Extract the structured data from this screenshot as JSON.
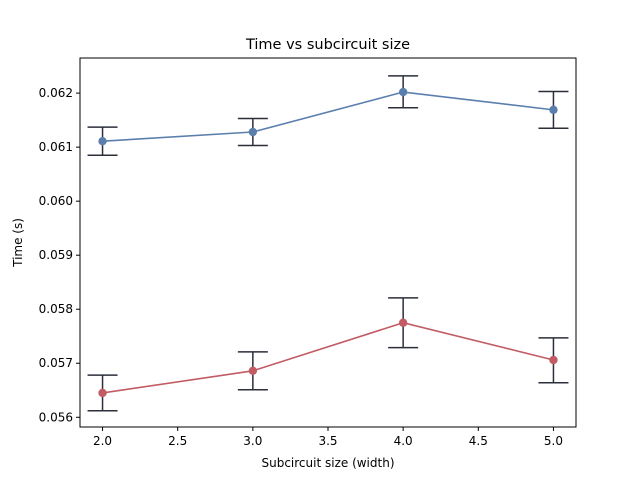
{
  "chart_data": {
    "type": "line",
    "title": "Time vs subcircuit size",
    "xlabel": "Subcircuit size (width)",
    "ylabel": "Time (s)",
    "xlim": [
      1.85,
      5.15
    ],
    "ylim": [
      0.05582,
      0.06265
    ],
    "x_ticks": [
      2.0,
      2.5,
      3.0,
      3.5,
      4.0,
      4.5,
      5.0
    ],
    "x_tick_labels": [
      "2.0",
      "2.5",
      "3.0",
      "3.5",
      "4.0",
      "4.5",
      "5.0"
    ],
    "y_ticks": [
      0.056,
      0.057,
      0.058,
      0.059,
      0.06,
      0.061,
      0.062
    ],
    "y_tick_labels": [
      "0.056",
      "0.057",
      "0.058",
      "0.059",
      "0.060",
      "0.061",
      "0.062"
    ],
    "grid": false,
    "legend": "none",
    "errorbar_color": "#2b2f3a",
    "series": [
      {
        "color": "#5b7fad",
        "x": [
          2.0,
          3.0,
          4.0,
          5.0
        ],
        "values": [
          0.06111,
          0.06128,
          0.06202,
          0.06169
        ],
        "err_low": [
          0.06085,
          0.06103,
          0.06173,
          0.06135
        ],
        "err_high": [
          0.06137,
          0.06153,
          0.06232,
          0.06203
        ]
      },
      {
        "color": "#c25b63",
        "x": [
          2.0,
          3.0,
          4.0,
          5.0
        ],
        "values": [
          0.05645,
          0.05686,
          0.05775,
          0.05706
        ],
        "err_low": [
          0.05612,
          0.05651,
          0.05729,
          0.05664
        ],
        "err_high": [
          0.05678,
          0.05721,
          0.05821,
          0.05747
        ]
      }
    ]
  }
}
